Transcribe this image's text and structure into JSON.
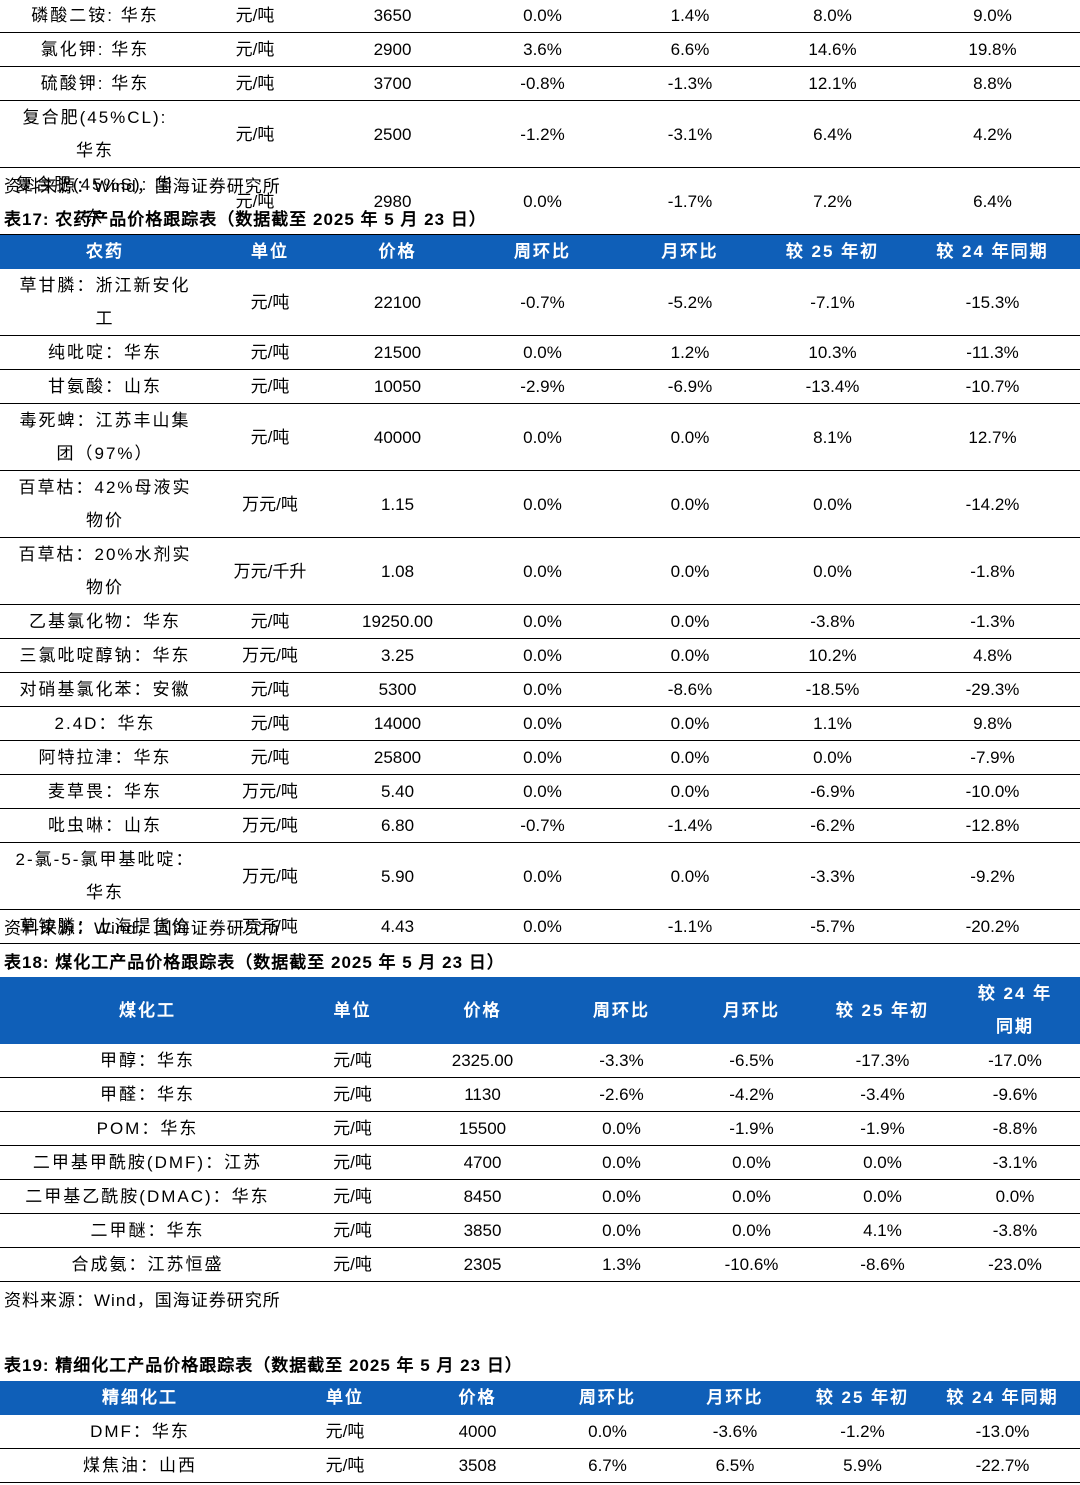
{
  "table16_tail": {
    "rows": [
      [
        "磷酸二铵: 华东",
        "元/吨",
        "3650",
        "0.0%",
        "1.4%",
        "8.0%",
        "9.0%"
      ],
      [
        "氯化钾: 华东",
        "元/吨",
        "2900",
        "3.6%",
        "6.6%",
        "14.6%",
        "19.8%"
      ],
      [
        "硫酸钾: 华东",
        "元/吨",
        "3700",
        "-0.8%",
        "-1.3%",
        "12.1%",
        "8.8%"
      ],
      [
        "复合肥(45%CL): 华东",
        "元/吨",
        "2500",
        "-1.2%",
        "-3.1%",
        "6.4%",
        "4.2%"
      ],
      [
        "复合肥(45%S): 华东",
        "元/吨",
        "2980",
        "0.0%",
        "-1.7%",
        "7.2%",
        "6.4%"
      ]
    ]
  },
  "source_1": "资料来源：Wind，国海证券研究所",
  "table17": {
    "title": "表17: 农药产品价格跟踪表（数据截至 2025 年 5 月 23 日）",
    "header": [
      "农药",
      "单位",
      "价格",
      "周环比",
      "月环比",
      "较 25 年初",
      "较 24 年同期"
    ],
    "rows": [
      [
        "草甘膦：浙江新安化工",
        "元/吨",
        "22100",
        "-0.7%",
        "-5.2%",
        "-7.1%",
        "-15.3%"
      ],
      [
        "纯吡啶：华东",
        "元/吨",
        "21500",
        "0.0%",
        "1.2%",
        "10.3%",
        "-11.3%"
      ],
      [
        "甘氨酸：山东",
        "元/吨",
        "10050",
        "-2.9%",
        "-6.9%",
        "-13.4%",
        "-10.7%"
      ],
      [
        "毒死蜱：江苏丰山集团（97%）",
        "元/吨",
        "40000",
        "0.0%",
        "0.0%",
        "8.1%",
        "12.7%"
      ],
      [
        "百草枯：42%母液实物价",
        "万元/吨",
        "1.15",
        "0.0%",
        "0.0%",
        "0.0%",
        "-14.2%"
      ],
      [
        "百草枯：20%水剂实物价",
        "万元/千升",
        "1.08",
        "0.0%",
        "0.0%",
        "0.0%",
        "-1.8%"
      ],
      [
        "乙基氯化物：华东",
        "元/吨",
        "19250.00",
        "0.0%",
        "0.0%",
        "-3.8%",
        "-1.3%"
      ],
      [
        "三氯吡啶醇钠：华东",
        "万元/吨",
        "3.25",
        "0.0%",
        "0.0%",
        "10.2%",
        "4.8%"
      ],
      [
        "对硝基氯化苯：安徽",
        "元/吨",
        "5300",
        "0.0%",
        "-8.6%",
        "-18.5%",
        "-29.3%"
      ],
      [
        "2.4D：华东",
        "元/吨",
        "14000",
        "0.0%",
        "0.0%",
        "1.1%",
        "9.8%"
      ],
      [
        "阿特拉津：华东",
        "元/吨",
        "25800",
        "0.0%",
        "0.0%",
        "0.0%",
        "-7.9%"
      ],
      [
        "麦草畏：华东",
        "万元/吨",
        "5.40",
        "0.0%",
        "0.0%",
        "-6.9%",
        "-10.0%"
      ],
      [
        "吡虫啉：山东",
        "万元/吨",
        "6.80",
        "-0.7%",
        "-1.4%",
        "-6.2%",
        "-12.8%"
      ],
      [
        "2-氯-5-氯甲基吡啶：华东",
        "万元/吨",
        "5.90",
        "0.0%",
        "0.0%",
        "-3.3%",
        "-9.2%"
      ],
      [
        "草铵膦：上海提货价",
        "万元/吨",
        "4.43",
        "0.0%",
        "-1.1%",
        "-5.7%",
        "-20.2%"
      ]
    ]
  },
  "source_2": "资料来源：Wind，国海证券研究所",
  "table18": {
    "title": "表18: 煤化工产品价格跟踪表（数据截至 2025 年 5 月 23 日）",
    "header": [
      "煤化工",
      "单位",
      "价格",
      "周环比",
      "月环比",
      "较 25 年初",
      "较 24 年同期"
    ],
    "rows": [
      [
        "甲醇：华东",
        "元/吨",
        "2325.00",
        "-3.3%",
        "-6.5%",
        "-17.3%",
        "-17.0%"
      ],
      [
        "甲醛：华东",
        "元/吨",
        "1130",
        "-2.6%",
        "-4.2%",
        "-3.4%",
        "-9.6%"
      ],
      [
        "POM：华东",
        "元/吨",
        "15500",
        "0.0%",
        "-1.9%",
        "-1.9%",
        "-8.8%"
      ],
      [
        "二甲基甲酰胺(DMF)：江苏",
        "元/吨",
        "4700",
        "0.0%",
        "0.0%",
        "0.0%",
        "-3.1%"
      ],
      [
        "二甲基乙酰胺(DMAC)：华东",
        "元/吨",
        "8450",
        "0.0%",
        "0.0%",
        "0.0%",
        "0.0%"
      ],
      [
        "二甲醚：华东",
        "元/吨",
        "3850",
        "0.0%",
        "0.0%",
        "4.1%",
        "-3.8%"
      ],
      [
        "合成氨：江苏恒盛",
        "元/吨",
        "2305",
        "1.3%",
        "-10.6%",
        "-8.6%",
        "-23.0%"
      ]
    ]
  },
  "source_3": "资料来源：Wind，国海证券研究所",
  "table19": {
    "title": "表19: 精细化工产品价格跟踪表（数据截至 2025 年 5 月 23 日）",
    "header": [
      "精细化工",
      "单位",
      "价格",
      "周环比",
      "月环比",
      "较 25 年初",
      "较 24 年同期"
    ],
    "rows": [
      [
        "DMF：华东",
        "元/吨",
        "4000",
        "0.0%",
        "-3.6%",
        "-1.2%",
        "-13.0%"
      ],
      [
        "煤焦油：山西",
        "元/吨",
        "3508",
        "6.7%",
        "6.5%",
        "5.9%",
        "-22.7%"
      ]
    ]
  }
}
